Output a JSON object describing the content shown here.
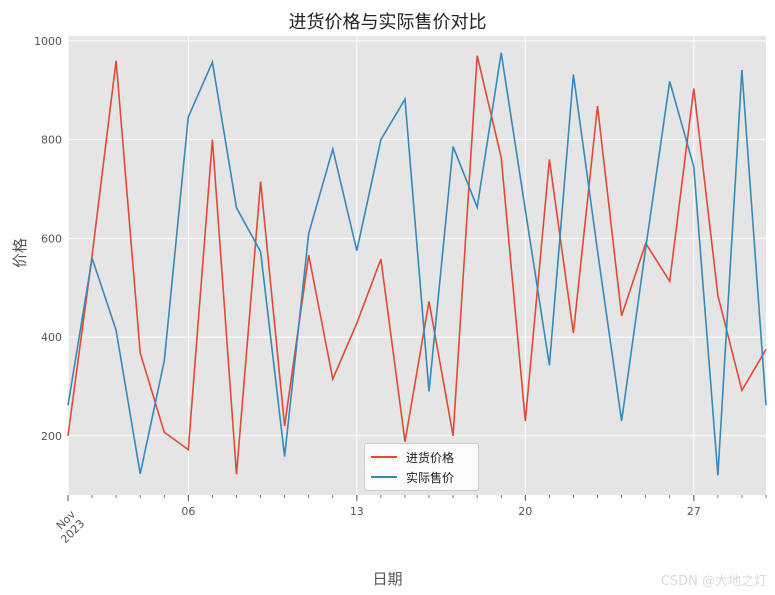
{
  "chart_data": {
    "type": "line",
    "title": "进货价格与实际售价对比",
    "xlabel": "日期",
    "ylabel": "价格",
    "x": [
      "2023-11-01",
      "2023-11-02",
      "2023-11-03",
      "2023-11-04",
      "2023-11-05",
      "2023-11-06",
      "2023-11-07",
      "2023-11-08",
      "2023-11-09",
      "2023-11-10",
      "2023-11-11",
      "2023-11-12",
      "2023-11-13",
      "2023-11-14",
      "2023-11-15",
      "2023-11-16",
      "2023-11-17",
      "2023-11-18",
      "2023-11-19",
      "2023-11-20",
      "2023-11-21",
      "2023-11-22",
      "2023-11-23",
      "2023-11-24",
      "2023-11-25",
      "2023-11-26",
      "2023-11-27",
      "2023-11-28",
      "2023-11-29",
      "2023-11-30"
    ],
    "series": [
      {
        "name": "进货价格",
        "color": "#E24A33",
        "values": [
          200,
          565,
          960,
          368,
          207,
          172,
          800,
          122,
          715,
          220,
          566,
          315,
          428,
          558,
          188,
          472,
          200,
          970,
          764,
          230,
          760,
          408,
          868,
          443,
          590,
          513,
          904,
          484,
          292,
          375
        ]
      },
      {
        "name": "实际售价",
        "color": "#348ABD",
        "values": [
          262,
          560,
          414,
          123,
          352,
          846,
          957,
          662,
          573,
          158,
          610,
          781,
          575,
          800,
          882,
          290,
          786,
          663,
          976,
          658,
          343,
          932,
          575,
          230,
          580,
          918,
          745,
          120,
          941,
          262
        ]
      }
    ],
    "ylim": [
      80,
      1010
    ],
    "yticks": [
      200,
      400,
      600,
      800,
      1000
    ],
    "xticks": [
      {
        "day": 1,
        "label": "Nov",
        "sublabel": "2023"
      },
      {
        "day": 6,
        "label": "06"
      },
      {
        "day": 13,
        "label": "13"
      },
      {
        "day": 20,
        "label": "20"
      },
      {
        "day": 27,
        "label": "27"
      }
    ],
    "grid": true,
    "legend_position": "bottom-center"
  },
  "watermark": "CSDN @大地之灯"
}
